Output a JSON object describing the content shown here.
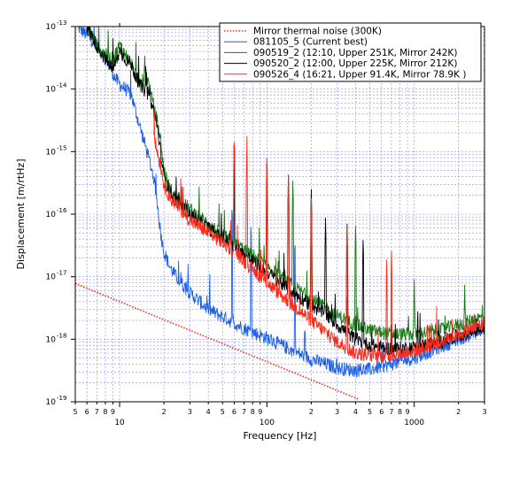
{
  "chart_data": {
    "type": "line",
    "x_scale": "log",
    "y_scale": "log",
    "xlabel": "Frequency [Hz]",
    "ylabel": "Displacement [m/rtHz]",
    "xlim": [
      5,
      3000
    ],
    "ylim": [
      1e-19,
      1e-13
    ],
    "grid": true,
    "legend_position": "top-right",
    "x_major_ticks": [
      {
        "value": 10,
        "label": "10"
      },
      {
        "value": 100,
        "label": "100"
      },
      {
        "value": 1000,
        "label": "1000"
      }
    ],
    "x_minor_ticks": [
      {
        "value": 5,
        "label": "5"
      },
      {
        "value": 6,
        "label": "6"
      },
      {
        "value": 7,
        "label": "7"
      },
      {
        "value": 8,
        "label": "8"
      },
      {
        "value": 9,
        "label": "9"
      },
      {
        "value": 20,
        "label": "2"
      },
      {
        "value": 30,
        "label": "3"
      },
      {
        "value": 40,
        "label": "4"
      },
      {
        "value": 50,
        "label": "5"
      },
      {
        "value": 60,
        "label": "6"
      },
      {
        "value": 70,
        "label": "7"
      },
      {
        "value": 80,
        "label": "8"
      },
      {
        "value": 90,
        "label": "9"
      },
      {
        "value": 200,
        "label": "2"
      },
      {
        "value": 300,
        "label": "3"
      },
      {
        "value": 400,
        "label": "4"
      },
      {
        "value": 500,
        "label": "5"
      },
      {
        "value": 600,
        "label": "6"
      },
      {
        "value": 700,
        "label": "7"
      },
      {
        "value": 800,
        "label": "8"
      },
      {
        "value": 900,
        "label": "9"
      },
      {
        "value": 2000,
        "label": "2"
      },
      {
        "value": 3000,
        "label": "3"
      }
    ],
    "y_major_ticks": [
      {
        "value": 1e-19,
        "base": "10",
        "exp": "-19"
      },
      {
        "value": 1e-18,
        "base": "10",
        "exp": "-18"
      },
      {
        "value": 1e-17,
        "base": "10",
        "exp": "-17"
      },
      {
        "value": 1e-16,
        "base": "10",
        "exp": "-16"
      },
      {
        "value": 1e-15,
        "base": "10",
        "exp": "-15"
      },
      {
        "value": 1e-14,
        "base": "10",
        "exp": "-14"
      },
      {
        "value": 1e-13,
        "base": "10",
        "exp": "-13"
      }
    ],
    "series": [
      {
        "name": "Mirror thermal noise (300K)",
        "color": "#ff2a1a",
        "style": "dotted",
        "x": [
          5,
          420
        ],
        "y": [
          7.8e-18,
          1.1e-19
        ]
      },
      {
        "name": "081105_5 (Current best)",
        "color": "#1a5fe6",
        "style": "solid",
        "x": [
          5.2,
          6.5,
          7.5,
          8.5,
          9.3,
          10,
          11,
          12,
          13,
          15,
          17,
          18,
          19,
          20,
          22,
          25,
          30,
          35,
          40,
          50,
          60,
          70,
          80,
          100,
          120,
          150,
          200,
          250,
          300,
          350,
          400,
          500,
          700,
          1000,
          1500,
          2000,
          2500,
          3000
        ],
        "y": [
          1e-13,
          6e-14,
          4e-14,
          2.5e-14,
          1.5e-14,
          1.2e-14,
          1e-14,
          8e-15,
          4e-15,
          1.2e-15,
          4e-16,
          1.5e-16,
          5e-17,
          2.5e-17,
          1.4e-17,
          9e-18,
          5.5e-18,
          4e-18,
          3e-18,
          2.3e-18,
          1.8e-18,
          1.5e-18,
          1.3e-18,
          1.05e-18,
          8.5e-19,
          6.5e-19,
          4.8e-19,
          4e-19,
          3.5e-19,
          3.3e-19,
          3.2e-19,
          3.3e-19,
          4e-19,
          5e-19,
          7.5e-19,
          1e-18,
          1.25e-18,
          1.55e-18
        ],
        "peaks": [
          {
            "x": 26,
            "y": 1.4e-17
          },
          {
            "x": 58,
            "y": 1.8e-16
          },
          {
            "x": 78,
            "y": 9e-17
          },
          {
            "x": 155,
            "y": 5e-17
          }
        ]
      },
      {
        "name": "090519_2 (12:10, Upper 251K, Mirror 242K)",
        "color": "#147814",
        "style": "solid",
        "x": [
          6,
          7,
          8,
          9,
          10,
          11,
          12,
          13,
          14,
          15,
          16,
          18,
          19,
          20,
          22,
          25,
          30,
          40,
          50,
          60,
          70,
          80,
          100,
          150,
          200,
          250,
          300,
          400,
          500,
          700,
          1000,
          1500,
          2000,
          3000
        ],
        "y": [
          1e-13,
          5e-14,
          3.5e-14,
          3e-14,
          5e-14,
          3.5e-14,
          2.5e-14,
          1.5e-14,
          1.1e-14,
          2e-14,
          1e-14,
          3e-15,
          1.5e-15,
          5e-16,
          2.5e-16,
          1.7e-16,
          1.2e-16,
          7e-17,
          4.5e-17,
          3.5e-17,
          2.7e-17,
          2.2e-17,
          1.5e-17,
          7e-18,
          4.5e-18,
          3.2e-18,
          2.4e-18,
          1.7e-18,
          1.4e-18,
          1.2e-18,
          1.2e-18,
          1.4e-18,
          1.7e-18,
          2.3e-18
        ],
        "peaks": [
          {
            "x": 60,
            "y": 2e-15
          },
          {
            "x": 100,
            "y": 1e-15
          },
          {
            "x": 150,
            "y": 4e-16
          },
          {
            "x": 200,
            "y": 1.5e-16
          },
          {
            "x": 400,
            "y": 8e-17
          },
          {
            "x": 1000,
            "y": 1e-17
          },
          {
            "x": 2200,
            "y": 8e-18
          }
        ]
      },
      {
        "name": "090520_2 (12:00, Upper 225K, Mirror 212K)",
        "color": "#000000",
        "style": "solid",
        "x": [
          6,
          7,
          8,
          9,
          10,
          11,
          12,
          13,
          14,
          16,
          18,
          20,
          22,
          25,
          30,
          40,
          50,
          60,
          80,
          100,
          150,
          200,
          250,
          300,
          400,
          500,
          700,
          1000,
          1500,
          2000,
          3000
        ],
        "y": [
          1e-13,
          5e-14,
          3e-14,
          2e-14,
          4e-14,
          3e-14,
          2.5e-14,
          1.5e-14,
          1.1e-14,
          8e-15,
          2.5e-15,
          4e-16,
          2.2e-16,
          1.5e-16,
          1e-16,
          6e-17,
          4e-17,
          3e-17,
          1.8e-17,
          1.2e-17,
          5.5e-18,
          3.5e-18,
          2.5e-18,
          1.7e-18,
          1e-18,
          8e-19,
          7e-19,
          7.5e-19,
          9e-19,
          1.15e-18,
          1.5e-18
        ],
        "peaks": [
          {
            "x": 60,
            "y": 2e-15
          },
          {
            "x": 100,
            "y": 1e-15
          },
          {
            "x": 140,
            "y": 5e-16
          },
          {
            "x": 200,
            "y": 3e-16
          },
          {
            "x": 250,
            "y": 1e-16
          },
          {
            "x": 350,
            "y": 8e-17
          },
          {
            "x": 450,
            "y": 5e-17
          }
        ]
      },
      {
        "name": "090526_4 (16:21, Upper 91.4K, Mirror 78.9K )",
        "color": "#ff2a1a",
        "style": "solid",
        "x": [
          17,
          18,
          19,
          20,
          22,
          25,
          30,
          40,
          50,
          60,
          80,
          100,
          150,
          200,
          250,
          300,
          400,
          500,
          700,
          1000,
          1500,
          2000,
          3000
        ],
        "y": [
          2e-15,
          1e-15,
          6e-16,
          3e-16,
          1.8e-16,
          1.3e-16,
          8e-17,
          5e-17,
          3.5e-17,
          2.5e-17,
          1.3e-17,
          8e-18,
          3.5e-18,
          2e-18,
          1.3e-18,
          9e-19,
          6e-19,
          5.5e-19,
          5.5e-19,
          6.5e-19,
          9e-19,
          1.2e-18,
          1.8e-18
        ],
        "peaks": [
          {
            "x": 26,
            "y": 4e-16
          },
          {
            "x": 60,
            "y": 2e-15
          },
          {
            "x": 73,
            "y": 1e-15
          },
          {
            "x": 100,
            "y": 1e-15
          },
          {
            "x": 140,
            "y": 5e-16
          },
          {
            "x": 200,
            "y": 2e-16
          },
          {
            "x": 350,
            "y": 8e-17
          },
          {
            "x": 650,
            "y": 2e-17
          },
          {
            "x": 700,
            "y": 3e-17
          }
        ]
      }
    ]
  }
}
